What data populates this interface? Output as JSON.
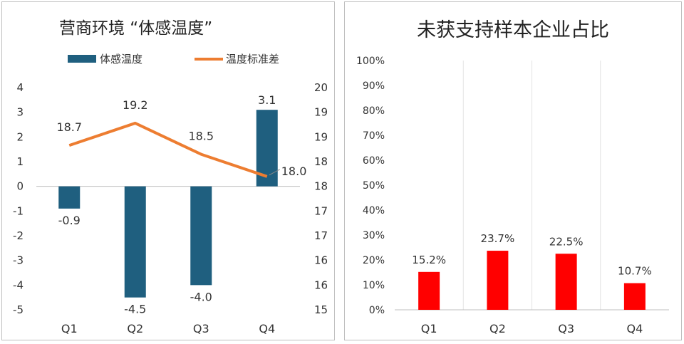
{
  "chart_data": [
    {
      "type": "bar+line",
      "title": "营商环境 “体感温度”",
      "categories": [
        "Q1",
        "Q2",
        "Q3",
        "Q4"
      ],
      "series": [
        {
          "name": "体感温度",
          "type": "bar",
          "axis": "left",
          "values": [
            -0.9,
            -4.5,
            -4.0,
            3.1
          ],
          "labels": [
            "-0.9",
            "-4.5",
            "-4.0",
            "3.1"
          ],
          "color": "#1f5f7f"
        },
        {
          "name": "温度标准差",
          "type": "line",
          "axis": "right",
          "values": [
            18.7,
            19.2,
            18.5,
            18.0
          ],
          "labels": [
            "18.7",
            "19.2",
            "18.5",
            "18.0"
          ],
          "color": "#ed7d31"
        }
      ],
      "y_left": {
        "ylim": [
          -5,
          4
        ],
        "ticks": [
          "4",
          "3",
          "2",
          "1",
          "0",
          "-1",
          "-2",
          "-3",
          "-4",
          "-5"
        ]
      },
      "y_right": {
        "ylim": [
          15,
          20
        ],
        "ticks": [
          "20",
          "19",
          "19",
          "18",
          "18",
          "17",
          "17",
          "16",
          "16",
          "15"
        ]
      },
      "legend_position": "top",
      "grid": false
    },
    {
      "type": "bar",
      "title": "未获支持样本企业占比",
      "categories": [
        "Q1",
        "Q2",
        "Q3",
        "Q4"
      ],
      "values": [
        15.2,
        23.7,
        22.5,
        10.7
      ],
      "labels": [
        "15.2%",
        "23.7%",
        "22.5%",
        "10.7%"
      ],
      "color": "#ff0000",
      "ylim": [
        0,
        100
      ],
      "yticks": [
        "100%",
        "90%",
        "80%",
        "70%",
        "60%",
        "50%",
        "40%",
        "30%",
        "20%",
        "10%",
        "0%"
      ],
      "grid": "vertical"
    }
  ]
}
